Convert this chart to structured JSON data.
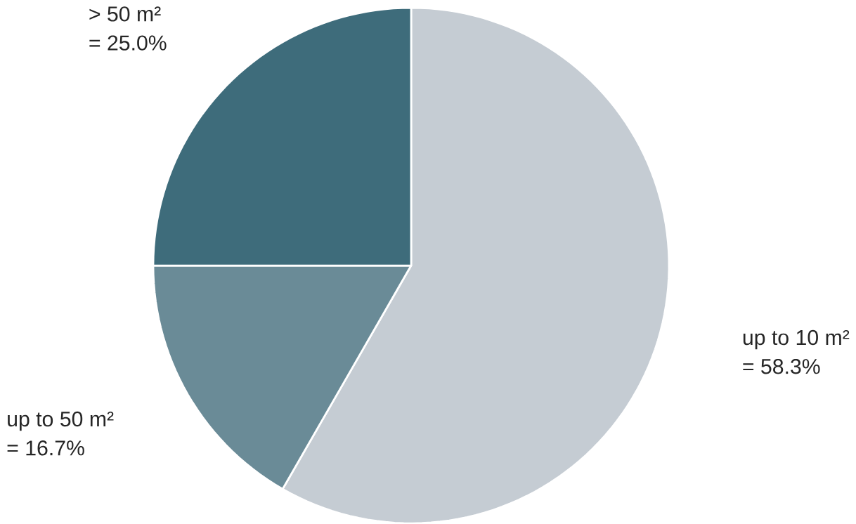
{
  "chart_data": {
    "type": "pie",
    "categories": [
      "up to 10 m²",
      "up to 50 m²",
      "> 50 m²"
    ],
    "values": [
      58.3,
      16.7,
      25.0
    ],
    "value_labels": [
      "= 58.3%",
      "= 16.7%",
      "= 25.0%"
    ],
    "colors": [
      "#c5ccd3",
      "#6a8b97",
      "#3e6c7b"
    ]
  }
}
